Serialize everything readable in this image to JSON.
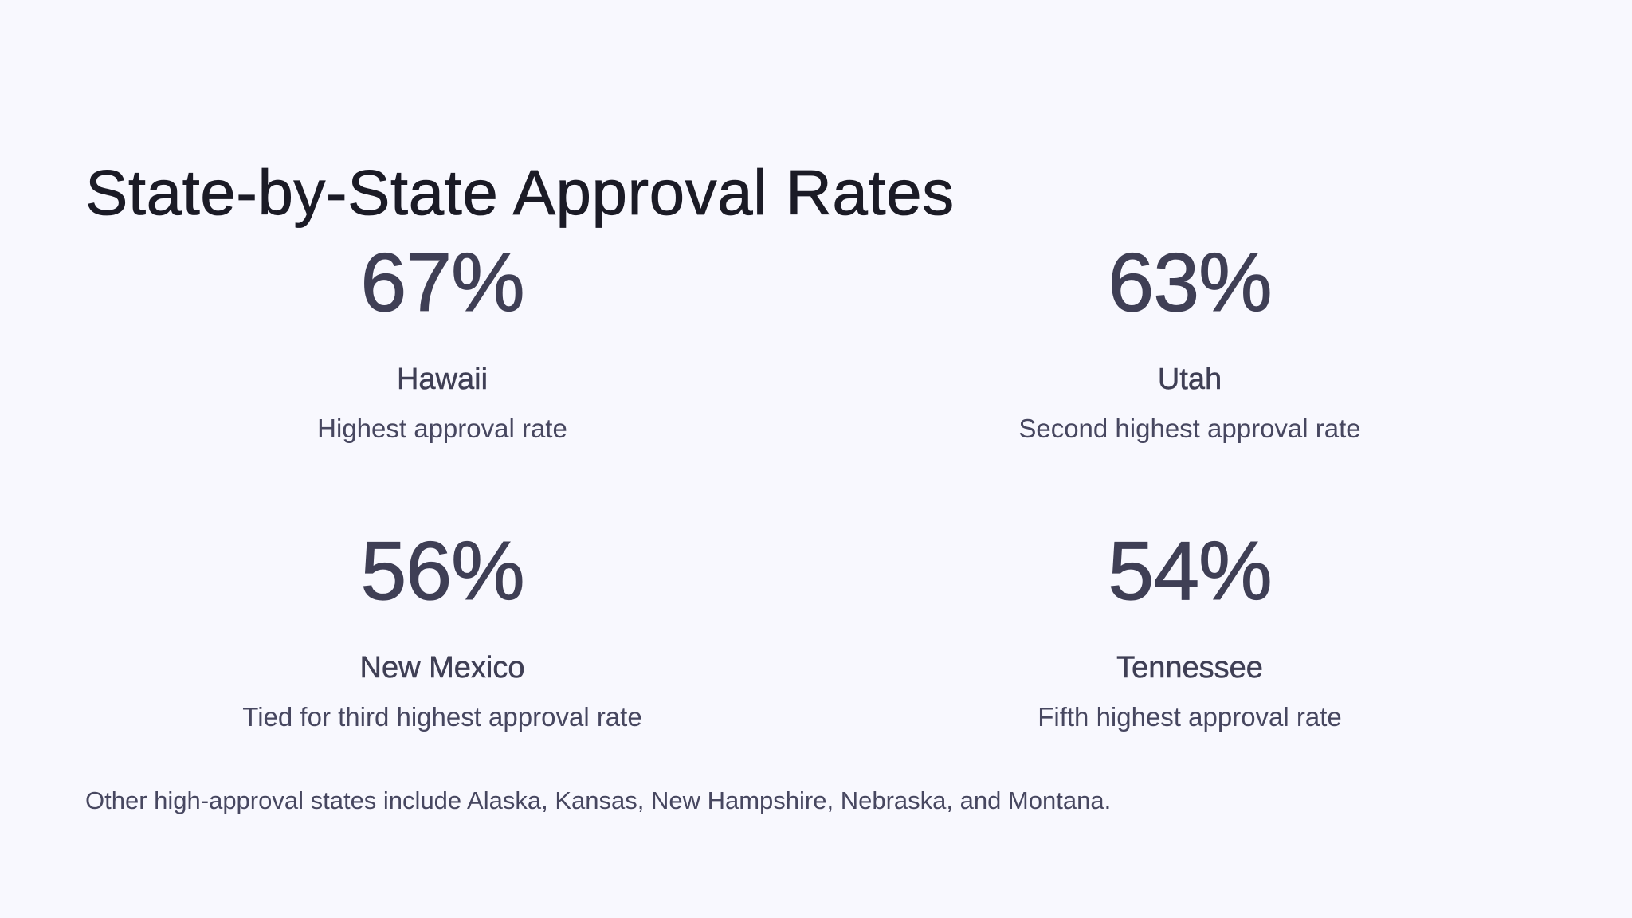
{
  "slide": {
    "title": "State-by-State Approval Rates",
    "stats": [
      {
        "value": "67%",
        "state": "Hawaii",
        "description": "Highest approval rate"
      },
      {
        "value": "63%",
        "state": "Utah",
        "description": "Second highest approval rate"
      },
      {
        "value": "56%",
        "state": "New Mexico",
        "description": "Tied for third highest approval rate"
      },
      {
        "value": "54%",
        "state": "Tennessee",
        "description": "Fifth highest approval rate"
      }
    ],
    "footer": "Other high-approval states include Alaska, Kansas, New Hampshire, Nebraska, and Montana."
  },
  "colors": {
    "background": "#f8f8fe",
    "title": "#1b1b26",
    "stat_text": "#3f3f55",
    "body_text": "#474760"
  }
}
